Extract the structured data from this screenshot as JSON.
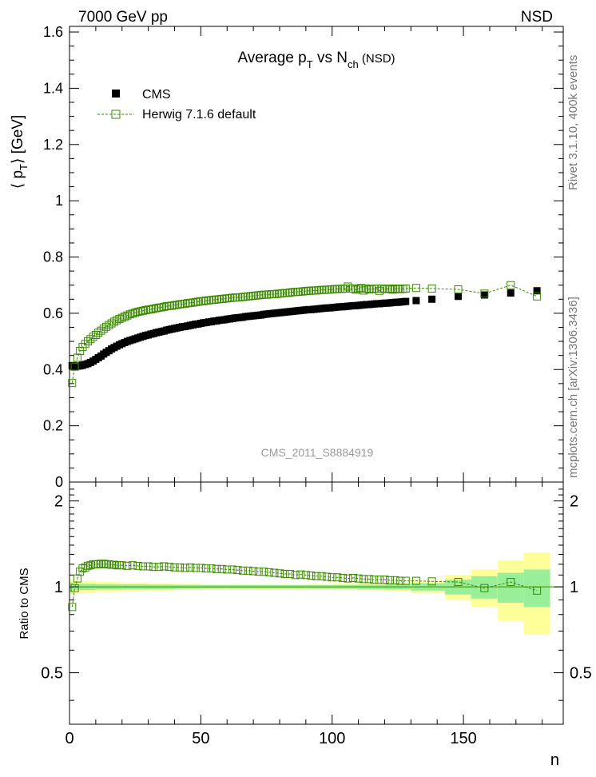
{
  "header": {
    "left": "7000 GeV pp",
    "right": "NSD"
  },
  "side_labels": {
    "rivet": "Rivet 3.1.10, 400k events",
    "mcplots": "mcplots.cern.ch [arXiv:1306.3436]"
  },
  "watermark": "CMS_2011_S8884919",
  "chart_data": [
    {
      "type": "scatter",
      "title": "Average p_T vs N_ch (NSD)",
      "title_parts": {
        "main": "Average p",
        "sub1": "T",
        "mid": " vs N",
        "sub2": "ch",
        "tail": " (NSD)"
      },
      "ylabel": "⟨ p_T ⟩ [GeV]",
      "ylabel_parts": {
        "open": "⟨ p",
        "sub": "T",
        "close": "⟩ [GeV]"
      },
      "xlim": [
        0,
        188
      ],
      "ylim": [
        0,
        1.62
      ],
      "yticks": [
        0,
        0.2,
        0.4,
        0.6,
        0.8,
        1,
        1.2,
        1.4,
        1.6
      ],
      "ytick_labels": [
        "0",
        "0.2",
        "0.4",
        "0.6",
        "0.8",
        "1",
        "1.2",
        "1.4",
        "1.6"
      ],
      "legend_position": "top-left",
      "series": [
        {
          "name": "CMS",
          "marker": "filled-square",
          "color": "#000000",
          "x": [
            1,
            2,
            3,
            4,
            5,
            6,
            7,
            8,
            9,
            10,
            11,
            12,
            13,
            14,
            15,
            16,
            17,
            18,
            19,
            20,
            21,
            22,
            23,
            24,
            25,
            26,
            27,
            28,
            29,
            30,
            31,
            32,
            33,
            34,
            35,
            36,
            37,
            38,
            39,
            40,
            41,
            42,
            43,
            44,
            45,
            46,
            47,
            48,
            49,
            50,
            51,
            52,
            53,
            54,
            55,
            56,
            57,
            58,
            59,
            60,
            61,
            62,
            63,
            64,
            65,
            66,
            67,
            68,
            69,
            70,
            71,
            72,
            73,
            74,
            75,
            76,
            77,
            78,
            79,
            80,
            81,
            82,
            83,
            84,
            85,
            86,
            87,
            88,
            89,
            90,
            91,
            92,
            93,
            94,
            95,
            96,
            97,
            98,
            99,
            100,
            101,
            102,
            103,
            104,
            105,
            106,
            107,
            108,
            109,
            110,
            111,
            112,
            113,
            114,
            115,
            116,
            117,
            118,
            119,
            120,
            121,
            122,
            123,
            124,
            125,
            126,
            127,
            128,
            132,
            138,
            148,
            158,
            168,
            178
          ],
          "y": [
            0.414,
            0.412,
            0.412,
            0.413,
            0.415,
            0.418,
            0.421,
            0.425,
            0.43,
            0.436,
            0.442,
            0.448,
            0.455,
            0.461,
            0.467,
            0.473,
            0.478,
            0.483,
            0.488,
            0.492,
            0.496,
            0.5,
            0.503,
            0.506,
            0.509,
            0.512,
            0.515,
            0.518,
            0.521,
            0.523,
            0.526,
            0.528,
            0.531,
            0.533,
            0.535,
            0.537,
            0.54,
            0.542,
            0.544,
            0.546,
            0.548,
            0.55,
            0.552,
            0.553,
            0.555,
            0.557,
            0.559,
            0.561,
            0.562,
            0.564,
            0.566,
            0.567,
            0.569,
            0.57,
            0.572,
            0.573,
            0.575,
            0.576,
            0.577,
            0.579,
            0.58,
            0.581,
            0.583,
            0.584,
            0.585,
            0.586,
            0.588,
            0.589,
            0.59,
            0.591,
            0.592,
            0.593,
            0.594,
            0.596,
            0.597,
            0.598,
            0.599,
            0.6,
            0.601,
            0.602,
            0.603,
            0.604,
            0.605,
            0.606,
            0.607,
            0.608,
            0.609,
            0.61,
            0.611,
            0.612,
            0.613,
            0.613,
            0.614,
            0.615,
            0.616,
            0.617,
            0.618,
            0.619,
            0.619,
            0.62,
            0.621,
            0.622,
            0.623,
            0.623,
            0.624,
            0.625,
            0.626,
            0.627,
            0.627,
            0.628,
            0.629,
            0.63,
            0.631,
            0.631,
            0.632,
            0.633,
            0.634,
            0.634,
            0.635,
            0.636,
            0.636,
            0.637,
            0.638,
            0.639,
            0.639,
            0.64,
            0.641,
            0.642,
            0.645,
            0.65,
            0.66,
            0.665,
            0.672,
            0.68
          ]
        },
        {
          "name": "Herwig 7.1.6 default",
          "marker": "open-square",
          "line": "dashed",
          "color": "#3a8a00",
          "x": [
            1,
            2,
            3,
            4,
            5,
            6,
            7,
            8,
            9,
            10,
            11,
            12,
            13,
            14,
            15,
            16,
            17,
            18,
            19,
            20,
            21,
            22,
            23,
            24,
            25,
            26,
            27,
            28,
            29,
            30,
            31,
            32,
            33,
            34,
            35,
            36,
            37,
            38,
            39,
            40,
            41,
            42,
            43,
            44,
            45,
            46,
            47,
            48,
            49,
            50,
            51,
            52,
            53,
            54,
            55,
            56,
            57,
            58,
            59,
            60,
            61,
            62,
            63,
            64,
            65,
            66,
            67,
            68,
            69,
            70,
            71,
            72,
            73,
            74,
            75,
            76,
            77,
            78,
            79,
            80,
            81,
            82,
            83,
            84,
            85,
            86,
            87,
            88,
            89,
            90,
            91,
            92,
            93,
            94,
            95,
            96,
            97,
            98,
            99,
            100,
            101,
            102,
            103,
            104,
            105,
            106,
            107,
            108,
            109,
            110,
            111,
            112,
            113,
            114,
            115,
            116,
            117,
            118,
            119,
            120,
            121,
            122,
            123,
            124,
            125,
            126,
            127,
            128,
            132,
            138,
            148,
            158,
            168,
            178
          ],
          "y": [
            0.352,
            0.41,
            0.442,
            0.466,
            0.48,
            0.491,
            0.5,
            0.508,
            0.516,
            0.523,
            0.531,
            0.538,
            0.545,
            0.552,
            0.558,
            0.564,
            0.57,
            0.575,
            0.58,
            0.584,
            0.588,
            0.592,
            0.596,
            0.599,
            0.602,
            0.605,
            0.607,
            0.609,
            0.611,
            0.613,
            0.614,
            0.616,
            0.618,
            0.62,
            0.621,
            0.623,
            0.625,
            0.626,
            0.627,
            0.629,
            0.63,
            0.632,
            0.633,
            0.634,
            0.636,
            0.637,
            0.638,
            0.64,
            0.641,
            0.643,
            0.643,
            0.645,
            0.646,
            0.647,
            0.648,
            0.649,
            0.65,
            0.651,
            0.652,
            0.653,
            0.654,
            0.655,
            0.656,
            0.656,
            0.657,
            0.658,
            0.659,
            0.66,
            0.661,
            0.662,
            0.663,
            0.664,
            0.665,
            0.666,
            0.666,
            0.667,
            0.668,
            0.668,
            0.669,
            0.67,
            0.671,
            0.672,
            0.672,
            0.674,
            0.675,
            0.676,
            0.676,
            0.677,
            0.678,
            0.679,
            0.68,
            0.68,
            0.681,
            0.681,
            0.682,
            0.683,
            0.683,
            0.684,
            0.684,
            0.685,
            0.686,
            0.686,
            0.687,
            0.687,
            0.688,
            0.695,
            0.688,
            0.688,
            0.684,
            0.687,
            0.69,
            0.681,
            0.688,
            0.685,
            0.686,
            0.687,
            0.688,
            0.68,
            0.688,
            0.686,
            0.687,
            0.688,
            0.684,
            0.686,
            0.688,
            0.686,
            0.687,
            0.688,
            0.69,
            0.688,
            0.685,
            0.67,
            0.7,
            0.66
          ]
        }
      ]
    },
    {
      "type": "scatter",
      "ylabel": "Ratio to CMS",
      "xlabel": "n",
      "xlim": [
        0,
        188
      ],
      "ylim": [
        0.33,
        2.33
      ],
      "yticks": [
        0.5,
        1,
        2
      ],
      "ytick_labels": [
        "0.5",
        "1",
        "2"
      ],
      "xticks": [
        0,
        50,
        100,
        150
      ],
      "xtick_labels": [
        "0",
        "50",
        "100",
        "150"
      ],
      "bands": {
        "x_edges": [
          0,
          1.5,
          10,
          20,
          30,
          40,
          50,
          60,
          70,
          80,
          90,
          100,
          110,
          120,
          130,
          143,
          153,
          163,
          173,
          183
        ],
        "inner_half_width": [
          0.035,
          0.025,
          0.022,
          0.02,
          0.018,
          0.016,
          0.015,
          0.015,
          0.015,
          0.015,
          0.015,
          0.016,
          0.018,
          0.022,
          0.03,
          0.06,
          0.09,
          0.12,
          0.15
        ],
        "outer_half_width": [
          0.06,
          0.05,
          0.04,
          0.035,
          0.03,
          0.025,
          0.022,
          0.022,
          0.022,
          0.022,
          0.023,
          0.025,
          0.028,
          0.035,
          0.05,
          0.1,
          0.15,
          0.24,
          0.32
        ],
        "inner_color": "#99ee99",
        "outer_color": "#ffff99"
      },
      "series": [
        {
          "name": "Herwig 7.1.6 default",
          "marker": "open-square",
          "line": "dashed",
          "color": "#3a8a00",
          "x": [
            1,
            2,
            3,
            4,
            5,
            6,
            7,
            8,
            9,
            10,
            11,
            12,
            13,
            14,
            15,
            16,
            17,
            18,
            19,
            20,
            22,
            24,
            26,
            28,
            30,
            32,
            34,
            36,
            38,
            40,
            42,
            44,
            46,
            48,
            50,
            52,
            54,
            56,
            58,
            60,
            62,
            64,
            66,
            68,
            70,
            72,
            74,
            76,
            78,
            80,
            82,
            84,
            86,
            88,
            90,
            92,
            94,
            96,
            98,
            100,
            102,
            104,
            106,
            108,
            110,
            112,
            114,
            116,
            118,
            120,
            122,
            124,
            126,
            128,
            132,
            138,
            148,
            158,
            168,
            178
          ],
          "y": [
            0.85,
            0.99,
            1.07,
            1.13,
            1.16,
            1.17,
            1.185,
            1.19,
            1.2,
            1.2,
            1.2,
            1.205,
            1.205,
            1.2,
            1.2,
            1.195,
            1.195,
            1.19,
            1.19,
            1.19,
            1.185,
            1.19,
            1.185,
            1.18,
            1.18,
            1.175,
            1.175,
            1.18,
            1.175,
            1.17,
            1.17,
            1.165,
            1.17,
            1.165,
            1.165,
            1.16,
            1.16,
            1.155,
            1.155,
            1.15,
            1.15,
            1.145,
            1.14,
            1.14,
            1.135,
            1.13,
            1.13,
            1.125,
            1.12,
            1.115,
            1.11,
            1.11,
            1.1,
            1.105,
            1.1,
            1.095,
            1.09,
            1.09,
            1.085,
            1.08,
            1.08,
            1.075,
            1.07,
            1.075,
            1.07,
            1.065,
            1.065,
            1.06,
            1.06,
            1.06,
            1.055,
            1.055,
            1.05,
            1.05,
            1.05,
            1.045,
            1.04,
            0.99,
            1.04,
            0.97
          ]
        }
      ]
    }
  ]
}
